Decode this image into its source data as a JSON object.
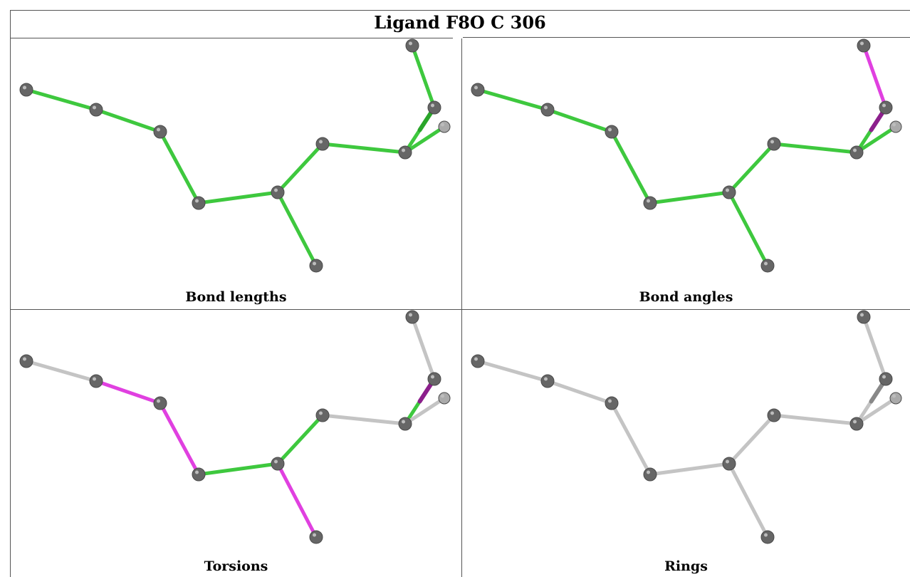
{
  "title": "Ligand F8O C 306",
  "colors": {
    "good": "#3ec83e",
    "good_dark": "#2aa52a",
    "outlier": "#e040e0",
    "outlier_dark": "#8c1f8c",
    "neutral": "#c4c4c4",
    "neutral_dark": "#888888",
    "atom": "#666666"
  },
  "panels": [
    {
      "caption": "Bond lengths",
      "bond_colors": [
        "good",
        "good",
        "good",
        "good",
        "good",
        "good",
        "good",
        "good",
        "good",
        "good_dark",
        "good"
      ]
    },
    {
      "caption": "Bond angles",
      "bond_colors": [
        "good",
        "good",
        "good",
        "good",
        "good",
        "good",
        "good",
        "good",
        "outlier",
        "outlier_dark",
        "good"
      ]
    },
    {
      "caption": "Torsions",
      "bond_colors": [
        "neutral",
        "outlier",
        "outlier",
        "good",
        "outlier",
        "good",
        "neutral",
        "good",
        "neutral",
        "outlier_dark",
        "neutral"
      ]
    },
    {
      "caption": "Rings",
      "bond_colors": [
        "neutral",
        "neutral",
        "neutral",
        "neutral",
        "neutral",
        "neutral",
        "neutral",
        "neutral",
        "neutral",
        "neutral_dark",
        "neutral"
      ]
    }
  ]
}
